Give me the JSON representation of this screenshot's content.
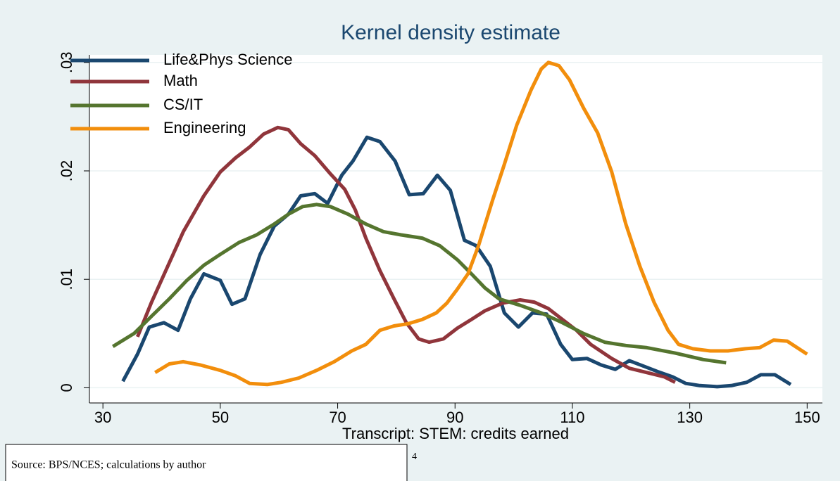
{
  "chart_data": {
    "type": "line",
    "title": "Kernel density estimate",
    "xlabel": "Transcript: STEM: credits earned",
    "xlim": [
      27.7,
      152.6
    ],
    "xticks": [
      30,
      50,
      70,
      90,
      110,
      130,
      150
    ],
    "ylim": [
      -0.0014,
      0.0307
    ],
    "yticks": [
      0,
      {
        "value": 0.01,
        "label": ".01"
      },
      {
        "value": 0.02,
        "label": ".02"
      },
      {
        "value": 0.03,
        "label": ".03"
      }
    ],
    "grid": true,
    "legend": "top-left",
    "series": [
      {
        "name": "Life&Phys Science",
        "color": "#1a476f",
        "x": [
          33.4,
          35.9,
          37.9,
          40.4,
          42.8,
          44.9,
          47.2,
          50,
          52.0,
          54.2,
          56.8,
          59.2,
          61.6,
          63.7,
          66.1,
          68.3,
          70.7,
          72.6,
          75.0,
          77.2,
          79.8,
          82.2,
          84.6,
          87.0,
          89.2,
          91.6,
          93.6,
          96.0,
          98.4,
          100.8,
          103.2,
          105.6,
          108.0,
          110,
          112.5,
          114.9,
          117.3,
          119.7,
          122.1,
          124.5,
          127.1,
          129.3,
          131.7,
          134.7,
          137.1,
          139.7,
          142.1,
          144.5,
          147.2
        ],
        "values": [
          0.0006,
          0.0031,
          0.0056,
          0.006,
          0.0053,
          0.0082,
          0.0105,
          0.0099,
          0.0077,
          0.0082,
          0.0123,
          0.0149,
          0.016,
          0.0177,
          0.0179,
          0.017,
          0.0196,
          0.0209,
          0.0231,
          0.0227,
          0.0209,
          0.0178,
          0.0179,
          0.0196,
          0.0182,
          0.0136,
          0.0131,
          0.0112,
          0.0069,
          0.0056,
          0.0069,
          0.0068,
          0.004,
          0.0026,
          0.0027,
          0.0021,
          0.0017,
          0.0025,
          0.002,
          0.0015,
          0.001,
          0.0004,
          0.0002,
          0.0001,
          0.0002,
          0.0005,
          0.0012,
          0.0012,
          0.0003
        ]
      },
      {
        "name": "Math",
        "color": "#90353b",
        "x": [
          35.9,
          38.3,
          40.7,
          43.7,
          47.2,
          50,
          52.6,
          55.0,
          57.4,
          59.8,
          61.6,
          63.7,
          66.1,
          68.8,
          71.2,
          73.0,
          74.8,
          77.2,
          79.6,
          81.7,
          83.8,
          85.6,
          88.0,
          90.4,
          92.8,
          95.1,
          98.1,
          101.1,
          103.5,
          105.9,
          108.3,
          110.7,
          113.1,
          116.7,
          119.7,
          122.7,
          125.7,
          127.5
        ],
        "values": [
          0.0047,
          0.0079,
          0.0108,
          0.0144,
          0.0177,
          0.0199,
          0.0212,
          0.0222,
          0.0234,
          0.024,
          0.0238,
          0.0225,
          0.0214,
          0.0197,
          0.0183,
          0.0164,
          0.0138,
          0.0108,
          0.0082,
          0.006,
          0.0045,
          0.0042,
          0.0045,
          0.0055,
          0.0063,
          0.0071,
          0.0078,
          0.0081,
          0.0079,
          0.0073,
          0.0063,
          0.0053,
          0.004,
          0.0027,
          0.0018,
          0.0014,
          0.001,
          0.0005
        ]
      },
      {
        "name": "CS/IT",
        "color": "#55752f",
        "x": [
          31.7,
          35.3,
          38.3,
          41.3,
          44.3,
          47.2,
          50,
          53.2,
          56.2,
          59.2,
          61.6,
          64.0,
          66.4,
          68.8,
          71.8,
          74.8,
          77.8,
          80.8,
          84.4,
          87.4,
          90.4,
          92.8,
          95.1,
          97.5,
          101.1,
          104.7,
          108.3,
          111.9,
          115.5,
          119.1,
          122.7,
          127.5,
          132.3,
          136.2
        ],
        "values": [
          0.0038,
          0.005,
          0.0066,
          0.0082,
          0.0099,
          0.0113,
          0.0123,
          0.0134,
          0.0141,
          0.0151,
          0.016,
          0.0167,
          0.0169,
          0.0167,
          0.016,
          0.0151,
          0.0144,
          0.0141,
          0.0138,
          0.0131,
          0.0118,
          0.0105,
          0.0092,
          0.0082,
          0.0076,
          0.0069,
          0.006,
          0.005,
          0.0042,
          0.0039,
          0.0037,
          0.0032,
          0.0026,
          0.0023
        ]
      },
      {
        "name": "Engineering",
        "color": "#f28e0c",
        "x": [
          38.9,
          41.3,
          43.7,
          46.6,
          50,
          52.6,
          55.0,
          58.0,
          60.4,
          63.4,
          66.4,
          69.4,
          72.4,
          74.8,
          77.2,
          79.6,
          82.0,
          84.4,
          86.8,
          88.6,
          90.4,
          92.2,
          94.0,
          96.4,
          98.4,
          100.5,
          102.9,
          104.7,
          105.9,
          107.7,
          109.5,
          111.9,
          114.3,
          116.7,
          119.1,
          121.5,
          123.9,
          126.3,
          128.1,
          130.5,
          133.5,
          136.5,
          139.5,
          141.9,
          144.3,
          146.6,
          150.0
        ],
        "values": [
          0.0014,
          0.0022,
          0.0024,
          0.0021,
          0.0016,
          0.0011,
          0.0004,
          0.0003,
          0.0005,
          0.0009,
          0.0016,
          0.0024,
          0.0034,
          0.004,
          0.0053,
          0.0057,
          0.0059,
          0.0063,
          0.0069,
          0.0078,
          0.0091,
          0.0105,
          0.0131,
          0.0173,
          0.0206,
          0.0242,
          0.0274,
          0.0294,
          0.03,
          0.0297,
          0.0284,
          0.0258,
          0.0235,
          0.0199,
          0.0151,
          0.0112,
          0.0079,
          0.0053,
          0.004,
          0.0036,
          0.0034,
          0.0034,
          0.0036,
          0.0037,
          0.0044,
          0.0043,
          0.0031
        ]
      }
    ]
  },
  "note": "Source: BPS/NCES; calculations by author",
  "footer_mark": "4"
}
